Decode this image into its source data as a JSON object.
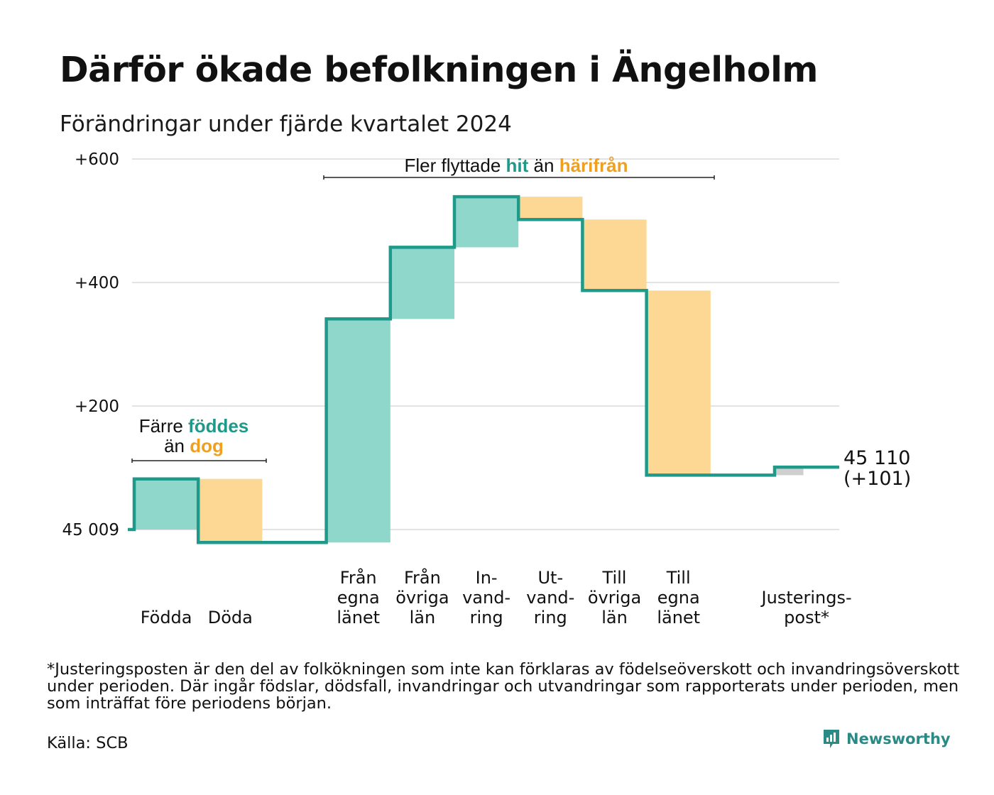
{
  "title": "Därför ökade befolkningen i Ängelholm",
  "subtitle": "Förändringar under fjärde kvartalet 2024",
  "footnote": "*Justeringsposten är den del av folkökningen som inte kan förklaras av födelseöverskott och invandringsöverskott under perioden. Där ingår födslar, dödsfall, invandringar och utvandringar som rapporterats under perioden, men som inträffat före periodens början.",
  "source": "Källa: SCB",
  "brand": {
    "name": "Newsworthy",
    "icon": "newsworthy-logo-icon"
  },
  "colors": {
    "increase_fill": "#8fd6cb",
    "decrease_fill": "#fcd894",
    "adjust_fill": "#cfcfcf",
    "line": "#1f9a8a",
    "teal_text": "#1f9a8a",
    "orange_text": "#f0a020",
    "grid": "#e3e3e3"
  },
  "chart_data": {
    "type": "waterfall",
    "start_value": 0,
    "start_label": "45 009",
    "ylim": [
      -25,
      600
    ],
    "yticks": [
      {
        "value": 600,
        "label": "+600"
      },
      {
        "value": 400,
        "label": "+400"
      },
      {
        "value": 200,
        "label": "+200"
      },
      {
        "value": 0,
        "label": "45 009"
      }
    ],
    "steps": [
      {
        "id": "fodda",
        "label": [
          "Födda"
        ],
        "change": 82,
        "kind": "increase"
      },
      {
        "id": "doda",
        "label": [
          "Döda"
        ],
        "change": -103,
        "kind": "decrease"
      },
      {
        "id": "gap",
        "label": [],
        "change": 0,
        "kind": "none"
      },
      {
        "id": "fran-egna",
        "label": [
          "Från",
          "egna",
          "länet"
        ],
        "change": 362,
        "kind": "increase"
      },
      {
        "id": "fran-ovriga",
        "label": [
          "Från",
          "övriga",
          "län"
        ],
        "change": 116,
        "kind": "increase"
      },
      {
        "id": "invandring",
        "label": [
          "In-",
          "vand-",
          "ring"
        ],
        "change": 82,
        "kind": "increase"
      },
      {
        "id": "utvandring",
        "label": [
          "Ut-",
          "vand-",
          "ring"
        ],
        "change": -37,
        "kind": "decrease"
      },
      {
        "id": "till-ovriga",
        "label": [
          "Till",
          "övriga",
          "län"
        ],
        "change": -115,
        "kind": "decrease"
      },
      {
        "id": "till-egna",
        "label": [
          "Till",
          "egna",
          "länet"
        ],
        "change": -299,
        "kind": "decrease"
      },
      {
        "id": "gap2",
        "label": [],
        "change": 0,
        "kind": "none"
      },
      {
        "id": "justering",
        "label": [
          "Justerings-",
          "post*"
        ],
        "change": 13,
        "kind": "adjust"
      }
    ],
    "end_value_label": "45 110",
    "end_change_label": "(+101)",
    "annotations": {
      "births": {
        "line1_prefix": "Färre",
        "line1_highlight": "föddes",
        "line2_prefix": "än",
        "line2_highlight": "dog"
      },
      "migration": {
        "prefix": "Fler flyttade",
        "highlight1": "hit",
        "middle": "än",
        "highlight2": "härifrån"
      }
    }
  }
}
